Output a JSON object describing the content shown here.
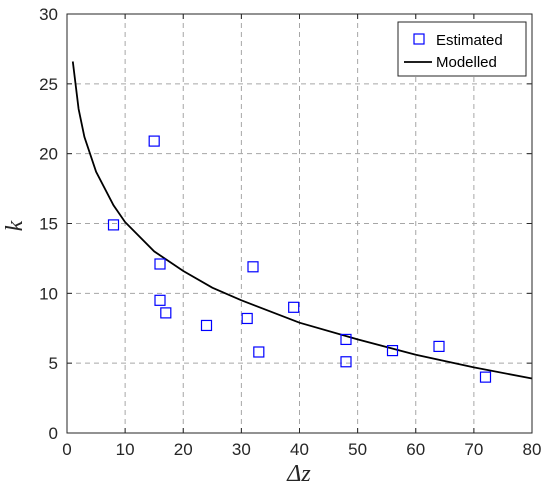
{
  "chart_data": {
    "type": "scatter",
    "xlabel": "Δz",
    "ylabel": "k",
    "xlim": [
      0,
      80
    ],
    "ylim": [
      0,
      30
    ],
    "grid": true,
    "legend_position": "top-right",
    "xticks": [
      "0",
      "10",
      "20",
      "30",
      "40",
      "50",
      "60",
      "70",
      "80"
    ],
    "yticks": [
      "0",
      "5",
      "10",
      "15",
      "20",
      "25",
      "30"
    ],
    "series": [
      {
        "name": "Estimated",
        "kind": "markers",
        "marker": "square",
        "color": "#0000ff",
        "points": [
          {
            "x": 8,
            "y": 14.9
          },
          {
            "x": 15,
            "y": 20.9
          },
          {
            "x": 16,
            "y": 12.1
          },
          {
            "x": 16,
            "y": 9.5
          },
          {
            "x": 17,
            "y": 8.6
          },
          {
            "x": 24,
            "y": 7.7
          },
          {
            "x": 31,
            "y": 8.2
          },
          {
            "x": 32,
            "y": 11.9
          },
          {
            "x": 33,
            "y": 5.8
          },
          {
            "x": 39,
            "y": 9.0
          },
          {
            "x": 48,
            "y": 6.7
          },
          {
            "x": 48,
            "y": 5.1
          },
          {
            "x": 56,
            "y": 5.9
          },
          {
            "x": 64,
            "y": 6.2
          },
          {
            "x": 72,
            "y": 4.0
          }
        ]
      },
      {
        "name": "Modelled",
        "kind": "line",
        "color": "#000000",
        "points": [
          {
            "x": 1,
            "y": 26.6
          },
          {
            "x": 2,
            "y": 23.2
          },
          {
            "x": 3,
            "y": 21.2
          },
          {
            "x": 5,
            "y": 18.7
          },
          {
            "x": 8,
            "y": 16.3
          },
          {
            "x": 10,
            "y": 15.1
          },
          {
            "x": 15,
            "y": 13.0
          },
          {
            "x": 20,
            "y": 11.6
          },
          {
            "x": 25,
            "y": 10.4
          },
          {
            "x": 30,
            "y": 9.5
          },
          {
            "x": 40,
            "y": 7.9
          },
          {
            "x": 50,
            "y": 6.7
          },
          {
            "x": 60,
            "y": 5.6
          },
          {
            "x": 70,
            "y": 4.7
          },
          {
            "x": 80,
            "y": 3.9
          }
        ]
      }
    ]
  }
}
